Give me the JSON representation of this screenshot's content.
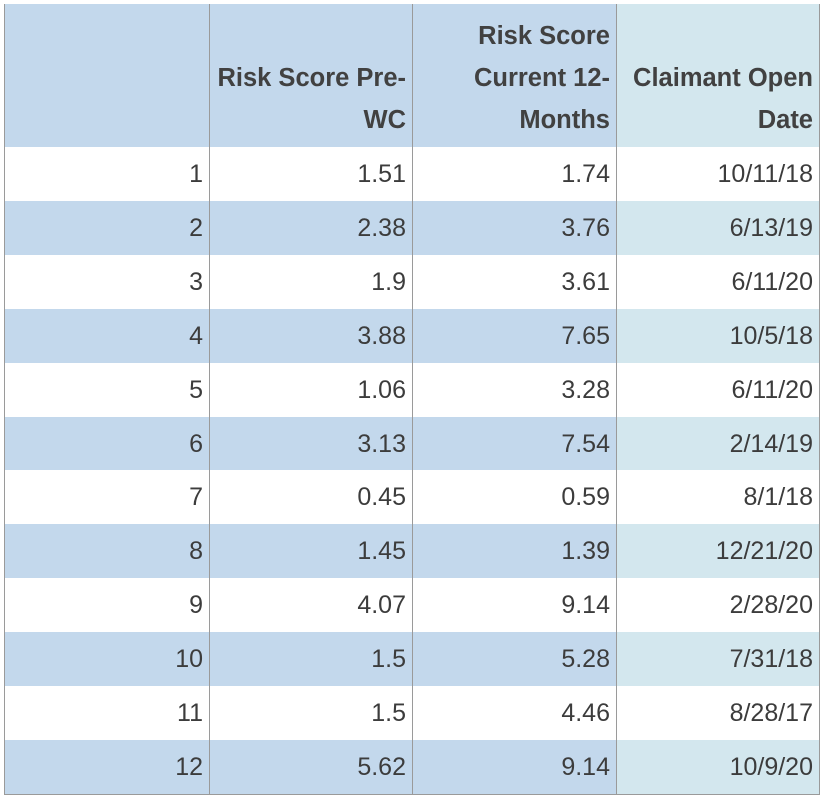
{
  "table": {
    "headers": [
      "",
      "Risk Score Pre-WC",
      "Risk Score Current 12-Months",
      "Claimant Open Date"
    ],
    "rows": [
      [
        "1",
        "1.51",
        "1.74",
        "10/11/18"
      ],
      [
        "2",
        "2.38",
        "3.76",
        "6/13/19"
      ],
      [
        "3",
        "1.9",
        "3.61",
        "6/11/20"
      ],
      [
        "4",
        "3.88",
        "7.65",
        "10/5/18"
      ],
      [
        "5",
        "1.06",
        "3.28",
        "6/11/20"
      ],
      [
        "6",
        "3.13",
        "7.54",
        "2/14/19"
      ],
      [
        "7",
        "0.45",
        "0.59",
        "8/1/18"
      ],
      [
        "8",
        "1.45",
        "1.39",
        "12/21/20"
      ],
      [
        "9",
        "4.07",
        "9.14",
        "2/28/20"
      ],
      [
        "10",
        "1.5",
        "5.28",
        "7/31/18"
      ],
      [
        "11",
        "1.5",
        "4.46",
        "8/28/17"
      ],
      [
        "12",
        "5.62",
        "9.14",
        "10/9/20"
      ]
    ]
  },
  "colors": {
    "header_blue": "#c3d8ec",
    "last_col_tint": "#d3e7ee",
    "row_band": "#c3d8ec",
    "grid": "#9a9a9a"
  }
}
